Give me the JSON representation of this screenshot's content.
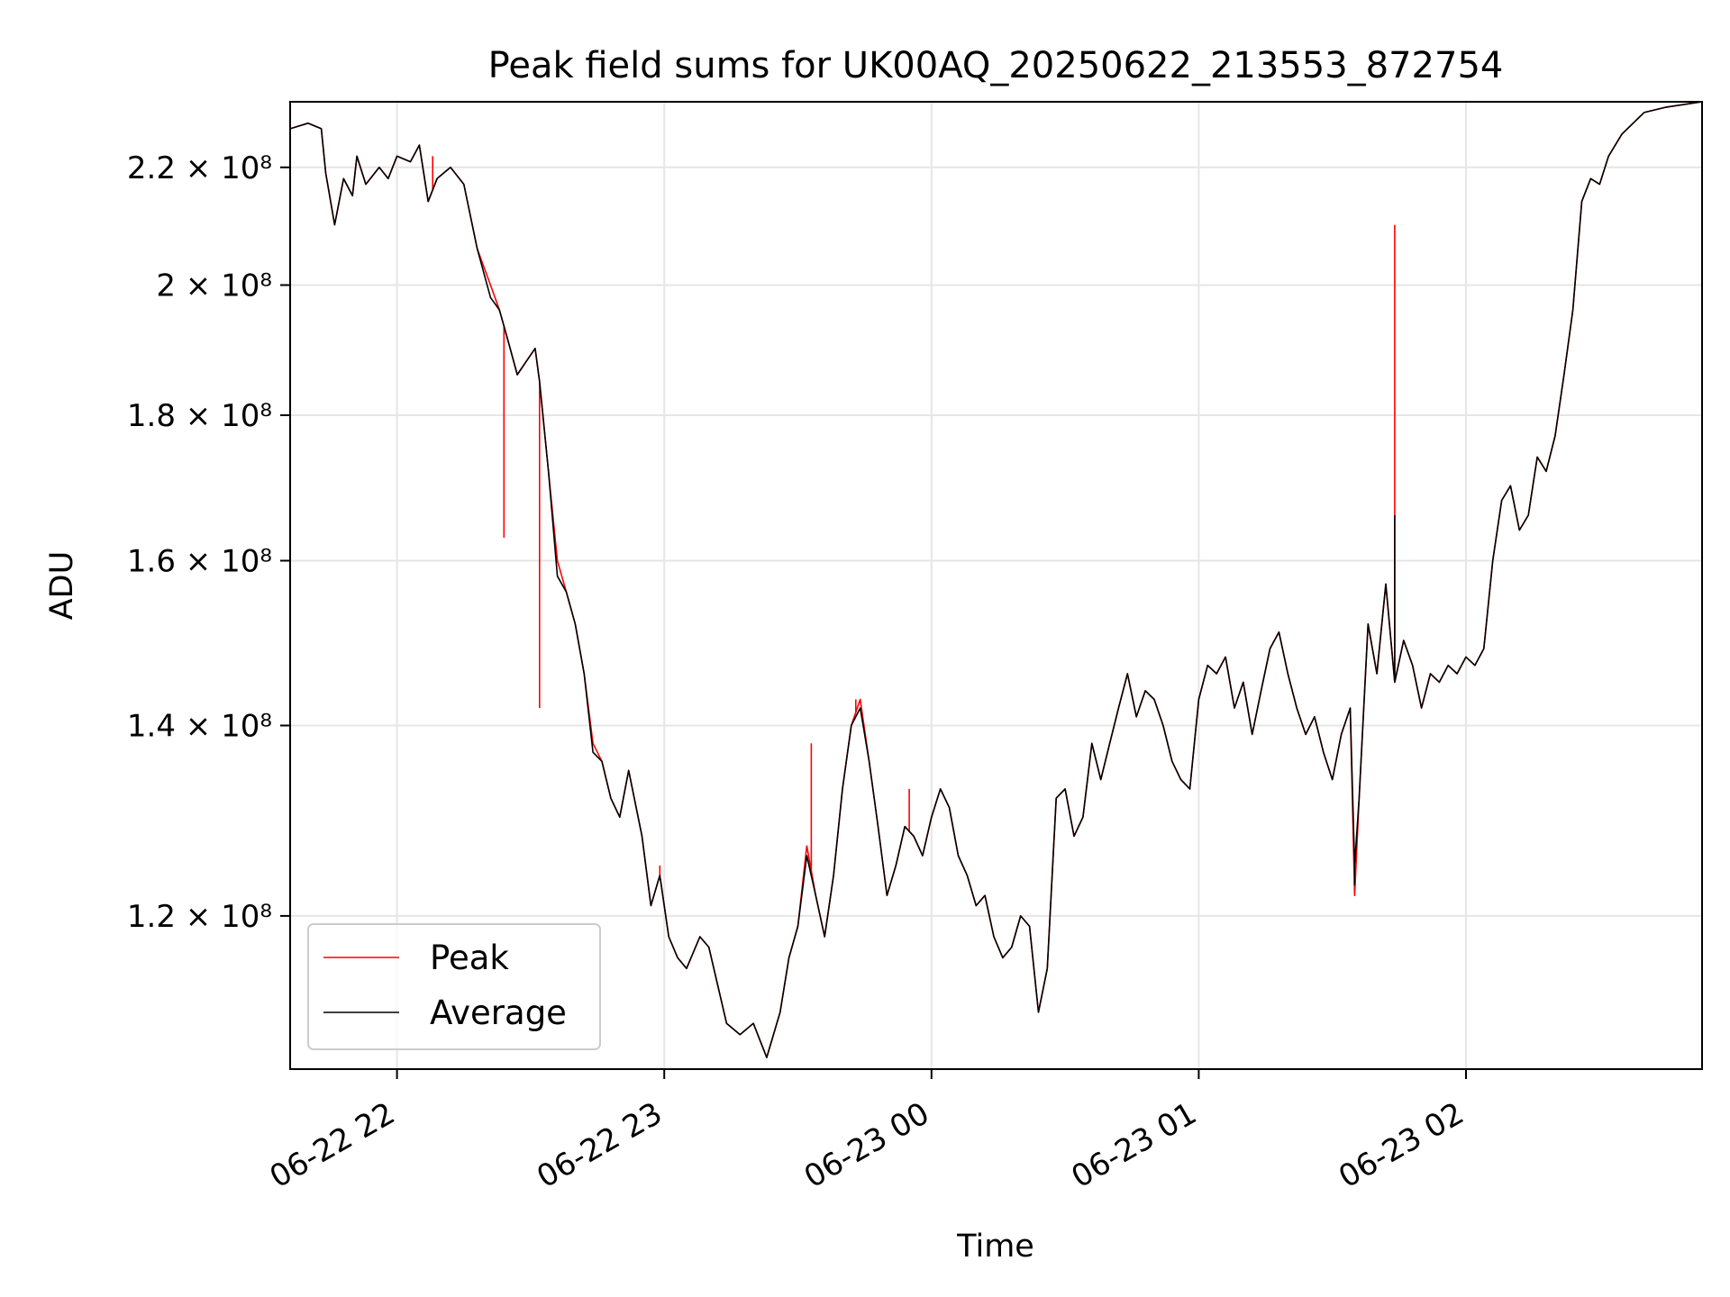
{
  "chart_data": {
    "type": "line",
    "title": "Peak field sums for UK00AQ_20250622_213553_872754",
    "xlabel": "Time",
    "ylabel": "ADU",
    "yscale": "log",
    "ylim": [
      106000000,
      232000000
    ],
    "xlim": [
      "2025-06-22 21:36",
      "2025-06-23 02:53"
    ],
    "grid": true,
    "legend_location": "lower-left",
    "x_ticks": [
      {
        "value": "2025-06-22 22:00",
        "label": "06-22 22"
      },
      {
        "value": "2025-06-22 23:00",
        "label": "06-22 23"
      },
      {
        "value": "2025-06-23 00:00",
        "label": "06-23 00"
      },
      {
        "value": "2025-06-23 01:00",
        "label": "06-23 01"
      },
      {
        "value": "2025-06-23 02:00",
        "label": "06-23 02"
      }
    ],
    "y_ticks": [
      {
        "value": 120000000,
        "label": "1.2 × 10⁸"
      },
      {
        "value": 140000000,
        "label": "1.4 × 10⁸"
      },
      {
        "value": 160000000,
        "label": "1.6 × 10⁸"
      },
      {
        "value": 180000000,
        "label": "1.8 × 10⁸"
      },
      {
        "value": 200000000,
        "label": "2 × 10⁸"
      },
      {
        "value": 220000000,
        "label": "2.2 × 10⁸"
      }
    ],
    "x": [
      "2025-06-22 21:36",
      "2025-06-22 21:40",
      "2025-06-22 21:43",
      "2025-06-22 21:44",
      "2025-06-22 21:46",
      "2025-06-22 21:48",
      "2025-06-22 21:50",
      "2025-06-22 21:51",
      "2025-06-22 21:53",
      "2025-06-22 21:56",
      "2025-06-22 21:58",
      "2025-06-22 22:00",
      "2025-06-22 22:03",
      "2025-06-22 22:05",
      "2025-06-22 22:07",
      "2025-06-22 22:09",
      "2025-06-22 22:12",
      "2025-06-22 22:15",
      "2025-06-22 22:18",
      "2025-06-22 22:21",
      "2025-06-22 22:23",
      "2025-06-22 22:25",
      "2025-06-22 22:27",
      "2025-06-22 22:29",
      "2025-06-22 22:31",
      "2025-06-22 22:32",
      "2025-06-22 22:34",
      "2025-06-22 22:36",
      "2025-06-22 22:38",
      "2025-06-22 22:40",
      "2025-06-22 22:42",
      "2025-06-22 22:44",
      "2025-06-22 22:46",
      "2025-06-22 22:48",
      "2025-06-22 22:50",
      "2025-06-22 22:52",
      "2025-06-22 22:55",
      "2025-06-22 22:57",
      "2025-06-22 22:59",
      "2025-06-22 23:01",
      "2025-06-22 23:03",
      "2025-06-22 23:05",
      "2025-06-22 23:08",
      "2025-06-22 23:10",
      "2025-06-22 23:14",
      "2025-06-22 23:17",
      "2025-06-22 23:20",
      "2025-06-22 23:23",
      "2025-06-22 23:26",
      "2025-06-22 23:28",
      "2025-06-22 23:30",
      "2025-06-22 23:32",
      "2025-06-22 23:34",
      "2025-06-22 23:36",
      "2025-06-22 23:38",
      "2025-06-22 23:40",
      "2025-06-22 23:42",
      "2025-06-22 23:44",
      "2025-06-22 23:46",
      "2025-06-22 23:48",
      "2025-06-22 23:50",
      "2025-06-22 23:52",
      "2025-06-22 23:54",
      "2025-06-22 23:56",
      "2025-06-22 23:58",
      "2025-06-23 00:00",
      "2025-06-23 00:02",
      "2025-06-23 00:04",
      "2025-06-23 00:06",
      "2025-06-23 00:08",
      "2025-06-23 00:10",
      "2025-06-23 00:12",
      "2025-06-23 00:14",
      "2025-06-23 00:16",
      "2025-06-23 00:18",
      "2025-06-23 00:20",
      "2025-06-23 00:22",
      "2025-06-23 00:24",
      "2025-06-23 00:26",
      "2025-06-23 00:28",
      "2025-06-23 00:30",
      "2025-06-23 00:32",
      "2025-06-23 00:34",
      "2025-06-23 00:36",
      "2025-06-23 00:38",
      "2025-06-23 00:40",
      "2025-06-23 00:42",
      "2025-06-23 00:44",
      "2025-06-23 00:46",
      "2025-06-23 00:48",
      "2025-06-23 00:50",
      "2025-06-23 00:52",
      "2025-06-23 00:54",
      "2025-06-23 00:56",
      "2025-06-23 00:58",
      "2025-06-23 01:00",
      "2025-06-23 01:02",
      "2025-06-23 01:04",
      "2025-06-23 01:06",
      "2025-06-23 01:08",
      "2025-06-23 01:10",
      "2025-06-23 01:12",
      "2025-06-23 01:14",
      "2025-06-23 01:16",
      "2025-06-23 01:18",
      "2025-06-23 01:20",
      "2025-06-23 01:22",
      "2025-06-23 01:24",
      "2025-06-23 01:26",
      "2025-06-23 01:28",
      "2025-06-23 01:30",
      "2025-06-23 01:32",
      "2025-06-23 01:34",
      "2025-06-23 01:35",
      "2025-06-23 01:36",
      "2025-06-23 01:38",
      "2025-06-23 01:40",
      "2025-06-23 01:42",
      "2025-06-23 01:44",
      "2025-06-23 01:46",
      "2025-06-23 01:48",
      "2025-06-23 01:50",
      "2025-06-23 01:52",
      "2025-06-23 01:54",
      "2025-06-23 01:56",
      "2025-06-23 01:58",
      "2025-06-23 02:00",
      "2025-06-23 02:02",
      "2025-06-23 02:04",
      "2025-06-23 02:06",
      "2025-06-23 02:08",
      "2025-06-23 02:10",
      "2025-06-23 02:12",
      "2025-06-23 02:14",
      "2025-06-23 02:16",
      "2025-06-23 02:18",
      "2025-06-23 02:20",
      "2025-06-23 02:22",
      "2025-06-23 02:24",
      "2025-06-23 02:26",
      "2025-06-23 02:28",
      "2025-06-23 02:30",
      "2025-06-23 02:32",
      "2025-06-23 02:35",
      "2025-06-23 02:40",
      "2025-06-23 02:45",
      "2025-06-23 02:53"
    ],
    "series": [
      {
        "name": "Peak",
        "color": "#ff0000",
        "values": [
          227000000,
          228000000,
          227000000,
          219000000,
          210000000,
          218000000,
          215000000,
          222000000,
          217000000,
          220000000,
          218000000,
          222000000,
          221000000,
          224000000,
          214000000,
          218000000,
          220000000,
          217000000,
          206000000,
          200000000,
          196000000,
          191000000,
          186000000,
          188000000,
          190000000,
          185000000,
          172000000,
          160000000,
          156000000,
          152000000,
          146000000,
          138000000,
          136000000,
          132000000,
          130000000,
          135000000,
          128000000,
          121000000,
          124000000,
          118000000,
          116000000,
          115000000,
          118000000,
          117000000,
          110000000,
          109000000,
          110000000,
          107000000,
          111000000,
          116000000,
          119000000,
          127000000,
          122000000,
          118000000,
          124000000,
          133000000,
          140000000,
          143000000,
          136000000,
          129000000,
          122000000,
          125000000,
          129000000,
          128000000,
          126000000,
          130000000,
          133000000,
          131000000,
          126000000,
          124000000,
          121000000,
          122000000,
          118000000,
          116000000,
          117000000,
          120000000,
          119000000,
          111000000,
          115000000,
          132000000,
          133000000,
          128000000,
          130000000,
          138000000,
          134000000,
          138000000,
          142000000,
          146000000,
          141000000,
          144000000,
          143000000,
          140000000,
          136000000,
          134000000,
          133000000,
          143000000,
          147000000,
          146000000,
          148000000,
          142000000,
          145000000,
          139000000,
          144000000,
          149000000,
          151000000,
          146000000,
          142000000,
          139000000,
          141000000,
          137000000,
          134000000,
          139000000,
          142000000,
          122000000,
          132000000,
          152000000,
          146000000,
          157000000,
          145000000,
          150000000,
          147000000,
          142000000,
          146000000,
          145000000,
          147000000,
          146000000,
          148000000,
          147000000,
          149000000,
          160000000,
          168000000,
          170000000,
          164000000,
          166000000,
          174000000,
          172000000,
          177000000,
          186000000,
          196000000,
          214000000,
          218000000,
          217000000,
          222000000,
          226000000,
          230000000,
          231000000,
          232000000
        ]
      },
      {
        "name": "Average",
        "color": "#000000",
        "values": [
          227000000,
          228000000,
          227000000,
          219000000,
          210000000,
          218000000,
          215000000,
          222000000,
          217000000,
          220000000,
          218000000,
          222000000,
          221000000,
          224000000,
          214000000,
          218000000,
          220000000,
          217000000,
          206000000,
          198000000,
          196000000,
          191000000,
          186000000,
          188000000,
          190000000,
          185000000,
          172000000,
          158000000,
          156000000,
          152000000,
          146000000,
          137000000,
          136000000,
          132000000,
          130000000,
          135000000,
          128000000,
          121000000,
          124000000,
          118000000,
          116000000,
          115000000,
          118000000,
          117000000,
          110000000,
          109000000,
          110000000,
          107000000,
          111000000,
          116000000,
          119000000,
          126000000,
          122000000,
          118000000,
          124000000,
          133000000,
          140000000,
          142000000,
          136000000,
          129000000,
          122000000,
          125000000,
          129000000,
          128000000,
          126000000,
          130000000,
          133000000,
          131000000,
          126000000,
          124000000,
          121000000,
          122000000,
          118000000,
          116000000,
          117000000,
          120000000,
          119000000,
          111000000,
          115000000,
          132000000,
          133000000,
          128000000,
          130000000,
          138000000,
          134000000,
          138000000,
          142000000,
          146000000,
          141000000,
          144000000,
          143000000,
          140000000,
          136000000,
          134000000,
          133000000,
          143000000,
          147000000,
          146000000,
          148000000,
          142000000,
          145000000,
          139000000,
          144000000,
          149000000,
          151000000,
          146000000,
          142000000,
          139000000,
          141000000,
          137000000,
          134000000,
          139000000,
          142000000,
          125000000,
          132000000,
          152000000,
          146000000,
          157000000,
          145000000,
          150000000,
          147000000,
          142000000,
          146000000,
          145000000,
          147000000,
          146000000,
          148000000,
          147000000,
          149000000,
          160000000,
          168000000,
          170000000,
          164000000,
          166000000,
          174000000,
          172000000,
          177000000,
          186000000,
          196000000,
          214000000,
          218000000,
          217000000,
          222000000,
          226000000,
          230000000,
          231000000,
          232000000
        ]
      }
    ],
    "spikes": {
      "Peak": [
        {
          "x": "2025-06-22 22:08",
          "value": 222000000
        },
        {
          "x": "2025-06-22 22:24",
          "value": 163000000
        },
        {
          "x": "2025-06-22 22:32",
          "value": 142000000
        },
        {
          "x": "2025-06-22 22:59",
          "value": 125000000
        },
        {
          "x": "2025-06-22 23:33",
          "value": 138000000
        },
        {
          "x": "2025-06-22 23:43",
          "value": 143000000
        },
        {
          "x": "2025-06-22 23:55",
          "value": 133000000
        },
        {
          "x": "2025-06-23 01:44",
          "value": 210000000
        }
      ],
      "Average": [
        {
          "x": "2025-06-23 01:35",
          "value": 123000000
        },
        {
          "x": "2025-06-23 01:44",
          "value": 166000000
        }
      ]
    }
  }
}
